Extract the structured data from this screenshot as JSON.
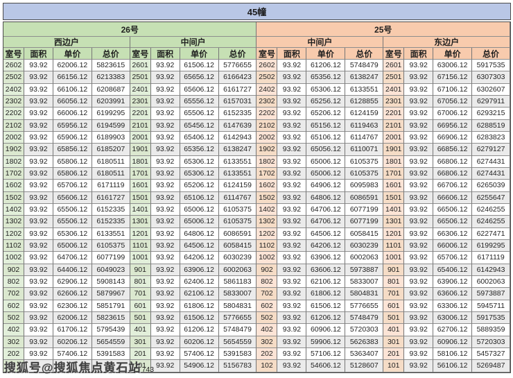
{
  "title": "45幢",
  "columns": [
    "室号",
    "面积",
    "单价",
    "总价"
  ],
  "buildings": [
    {
      "label": "26号",
      "theme": "green"
    },
    {
      "label": "25号",
      "theme": "peach"
    }
  ],
  "colors": {
    "banner": "#b9c7e6",
    "green_header": "#c6e0b4",
    "green_room": "#e2efda",
    "peach_header": "#f8cbad",
    "peach_room": "#fce4d6",
    "stripe": "#ebebeb"
  },
  "watermark": {
    "text": "搜狐号@搜狐焦点黄石站",
    "trailing_text": "743"
  },
  "row_count": 26,
  "sections": [
    {
      "building": "26号",
      "unit": "西边户",
      "theme": "green",
      "rows": [
        [
          "2602",
          "93.92",
          "62006.12",
          "5823615"
        ],
        [
          "2502",
          "93.92",
          "66156.12",
          "6213383"
        ],
        [
          "2402",
          "93.92",
          "66106.12",
          "6208687"
        ],
        [
          "2302",
          "93.92",
          "66056.12",
          "6203991"
        ],
        [
          "2202",
          "93.92",
          "66006.12",
          "6199295"
        ],
        [
          "2102",
          "93.92",
          "65956.12",
          "6194599"
        ],
        [
          "2002",
          "93.92",
          "65906.12",
          "6189903"
        ],
        [
          "1902",
          "93.92",
          "65856.12",
          "6185207"
        ],
        [
          "1802",
          "93.92",
          "65806.12",
          "6180511"
        ],
        [
          "1702",
          "93.92",
          "65806.12",
          "6180511"
        ],
        [
          "1602",
          "93.92",
          "65706.12",
          "6171119"
        ],
        [
          "1502",
          "93.92",
          "65606.12",
          "6161727"
        ],
        [
          "1402",
          "93.92",
          "65506.12",
          "6152335"
        ],
        [
          "1302",
          "93.92",
          "65506.12",
          "6152335"
        ],
        [
          "1202",
          "93.92",
          "65306.12",
          "6133551"
        ],
        [
          "1102",
          "93.92",
          "65006.12",
          "6105375"
        ],
        [
          "1002",
          "93.92",
          "64706.12",
          "6077199"
        ],
        [
          "902",
          "93.92",
          "64406.12",
          "6049023"
        ],
        [
          "802",
          "93.92",
          "62906.12",
          "5908143"
        ],
        [
          "702",
          "93.92",
          "62606.12",
          "5879967"
        ],
        [
          "602",
          "93.92",
          "62306.12",
          "5851791"
        ],
        [
          "502",
          "93.92",
          "62006.12",
          "5823615"
        ],
        [
          "402",
          "93.92",
          "61706.12",
          "5795439"
        ],
        [
          "302",
          "93.92",
          "60206.12",
          "5654559"
        ],
        [
          "202",
          "93.92",
          "57406.12",
          "5391583"
        ],
        [
          "",
          "",
          "",
          ""
        ]
      ]
    },
    {
      "building": "26号",
      "unit": "中间户",
      "theme": "green",
      "rows": [
        [
          "2601",
          "93.92",
          "61506.12",
          "5776655"
        ],
        [
          "2501",
          "93.92",
          "65656.12",
          "6166423"
        ],
        [
          "2401",
          "93.92",
          "65606.12",
          "6161727"
        ],
        [
          "2301",
          "93.92",
          "65556.12",
          "6157031"
        ],
        [
          "2201",
          "93.92",
          "65506.12",
          "6152335"
        ],
        [
          "2101",
          "93.92",
          "65456.12",
          "6147639"
        ],
        [
          "2001",
          "93.92",
          "65406.12",
          "6142943"
        ],
        [
          "1901",
          "93.92",
          "65356.12",
          "6138247"
        ],
        [
          "1801",
          "93.92",
          "65306.12",
          "6133551"
        ],
        [
          "1701",
          "93.92",
          "65306.12",
          "6133551"
        ],
        [
          "1601",
          "93.92",
          "65206.12",
          "6124159"
        ],
        [
          "1501",
          "93.92",
          "65106.12",
          "6114767"
        ],
        [
          "1401",
          "93.92",
          "65006.12",
          "6105375"
        ],
        [
          "1301",
          "93.92",
          "65006.12",
          "6105375"
        ],
        [
          "1201",
          "93.92",
          "64806.12",
          "6086591"
        ],
        [
          "1101",
          "93.92",
          "64506.12",
          "6058415"
        ],
        [
          "1001",
          "93.92",
          "64206.12",
          "6030239"
        ],
        [
          "901",
          "93.92",
          "63906.12",
          "6002063"
        ],
        [
          "801",
          "93.92",
          "62406.12",
          "5861183"
        ],
        [
          "701",
          "93.92",
          "62106.12",
          "5833007"
        ],
        [
          "601",
          "93.92",
          "61806.12",
          "5804831"
        ],
        [
          "501",
          "93.92",
          "61506.12",
          "5776655"
        ],
        [
          "401",
          "93.92",
          "61206.12",
          "5748479"
        ],
        [
          "301",
          "93.92",
          "60206.12",
          "5654559"
        ],
        [
          "201",
          "93.92",
          "57406.12",
          "5391583"
        ],
        [
          "101",
          "93.92",
          "54906.12",
          "5156783"
        ]
      ]
    },
    {
      "building": "25号",
      "unit": "中间户",
      "theme": "peach",
      "rows": [
        [
          "2602",
          "93.92",
          "61206.12",
          "5748479"
        ],
        [
          "2502",
          "93.92",
          "65356.12",
          "6138247"
        ],
        [
          "2402",
          "93.92",
          "65306.12",
          "6133551"
        ],
        [
          "2302",
          "93.92",
          "65256.12",
          "6128855"
        ],
        [
          "2202",
          "93.92",
          "65206.12",
          "6124159"
        ],
        [
          "2102",
          "93.92",
          "65156.12",
          "6119463"
        ],
        [
          "2002",
          "93.92",
          "65106.12",
          "6114767"
        ],
        [
          "1902",
          "93.92",
          "65056.12",
          "6110071"
        ],
        [
          "1802",
          "93.92",
          "65006.12",
          "6105375"
        ],
        [
          "1702",
          "93.92",
          "65006.12",
          "6105375"
        ],
        [
          "1602",
          "93.92",
          "64906.12",
          "6095983"
        ],
        [
          "1502",
          "93.92",
          "64806.12",
          "6086591"
        ],
        [
          "1402",
          "93.92",
          "64706.12",
          "6077199"
        ],
        [
          "1302",
          "93.92",
          "64706.12",
          "6077199"
        ],
        [
          "1202",
          "93.92",
          "64506.12",
          "6058415"
        ],
        [
          "1102",
          "93.92",
          "64206.12",
          "6030239"
        ],
        [
          "1002",
          "93.92",
          "63906.12",
          "6002063"
        ],
        [
          "902",
          "93.92",
          "63606.12",
          "5973887"
        ],
        [
          "802",
          "93.92",
          "62106.12",
          "5833007"
        ],
        [
          "702",
          "93.92",
          "61806.12",
          "5804831"
        ],
        [
          "602",
          "93.92",
          "61506.12",
          "5776655"
        ],
        [
          "502",
          "93.92",
          "61206.12",
          "5748479"
        ],
        [
          "402",
          "93.92",
          "60906.12",
          "5720303"
        ],
        [
          "302",
          "93.92",
          "59906.12",
          "5626383"
        ],
        [
          "202",
          "93.92",
          "57106.12",
          "5363407"
        ],
        [
          "102",
          "93.92",
          "54606.12",
          "5128607"
        ]
      ]
    },
    {
      "building": "25号",
      "unit": "东边户",
      "theme": "peach",
      "rows": [
        [
          "2601",
          "93.92",
          "63006.12",
          "5917535"
        ],
        [
          "2501",
          "93.92",
          "67156.12",
          "6307303"
        ],
        [
          "2401",
          "93.92",
          "67106.12",
          "6302607"
        ],
        [
          "2301",
          "93.92",
          "67056.12",
          "6297911"
        ],
        [
          "2201",
          "93.92",
          "67006.12",
          "6293215"
        ],
        [
          "2101",
          "93.92",
          "66956.12",
          "6288519"
        ],
        [
          "2001",
          "93.92",
          "66906.12",
          "6283823"
        ],
        [
          "1901",
          "93.92",
          "66856.12",
          "6279127"
        ],
        [
          "1801",
          "93.92",
          "66806.12",
          "6274431"
        ],
        [
          "1701",
          "93.92",
          "66806.12",
          "6274431"
        ],
        [
          "1601",
          "93.92",
          "66706.12",
          "6265039"
        ],
        [
          "1501",
          "93.92",
          "66606.12",
          "6255647"
        ],
        [
          "1401",
          "93.92",
          "66506.12",
          "6246255"
        ],
        [
          "1301",
          "93.92",
          "66506.12",
          "6246255"
        ],
        [
          "1201",
          "93.92",
          "66306.12",
          "6227471"
        ],
        [
          "1101",
          "93.92",
          "66006.12",
          "6199295"
        ],
        [
          "1001",
          "93.92",
          "65706.12",
          "6171119"
        ],
        [
          "901",
          "93.92",
          "65406.12",
          "6142943"
        ],
        [
          "801",
          "93.92",
          "63906.12",
          "6002063"
        ],
        [
          "701",
          "93.92",
          "63606.12",
          "5973887"
        ],
        [
          "601",
          "93.92",
          "63306.12",
          "5945711"
        ],
        [
          "501",
          "93.92",
          "63006.12",
          "5917535"
        ],
        [
          "401",
          "93.92",
          "62706.12",
          "5889359"
        ],
        [
          "301",
          "93.92",
          "60906.12",
          "5720303"
        ],
        [
          "201",
          "93.92",
          "58106.12",
          "5457327"
        ],
        [
          "101",
          "93.92",
          "56106.12",
          "5269487"
        ]
      ]
    }
  ]
}
